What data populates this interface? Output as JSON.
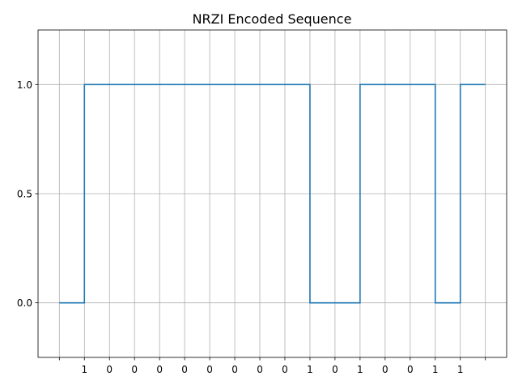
{
  "chart_data": {
    "type": "line",
    "step": "post",
    "title": "NRZI Encoded Sequence",
    "xlabel": "",
    "ylabel": "",
    "grid": true,
    "xlim": [
      -0.85,
      17.85
    ],
    "ylim": [
      -0.25,
      1.25
    ],
    "x_tick_positions": [
      0,
      1,
      2,
      3,
      4,
      5,
      6,
      7,
      8,
      9,
      10,
      11,
      12,
      13,
      14,
      15,
      16,
      17
    ],
    "x_tick_labels": [
      "",
      "1",
      "0",
      "0",
      "0",
      "0",
      "0",
      "0",
      "0",
      "0",
      "1",
      "0",
      "1",
      "0",
      "0",
      "1",
      "1",
      ""
    ],
    "y_ticks": [
      0.0,
      0.5,
      1.0
    ],
    "y_tick_labels": [
      "0.0",
      "0.5",
      "1.0"
    ],
    "series": [
      {
        "color": "#1f77b4",
        "x": [
          0,
          1,
          2,
          3,
          4,
          5,
          6,
          7,
          8,
          9,
          10,
          11,
          12,
          13,
          14,
          15,
          16,
          17
        ],
        "values": [
          0,
          1,
          1,
          1,
          1,
          1,
          1,
          1,
          1,
          1,
          0,
          0,
          1,
          1,
          1,
          0,
          1,
          1
        ]
      }
    ]
  }
}
